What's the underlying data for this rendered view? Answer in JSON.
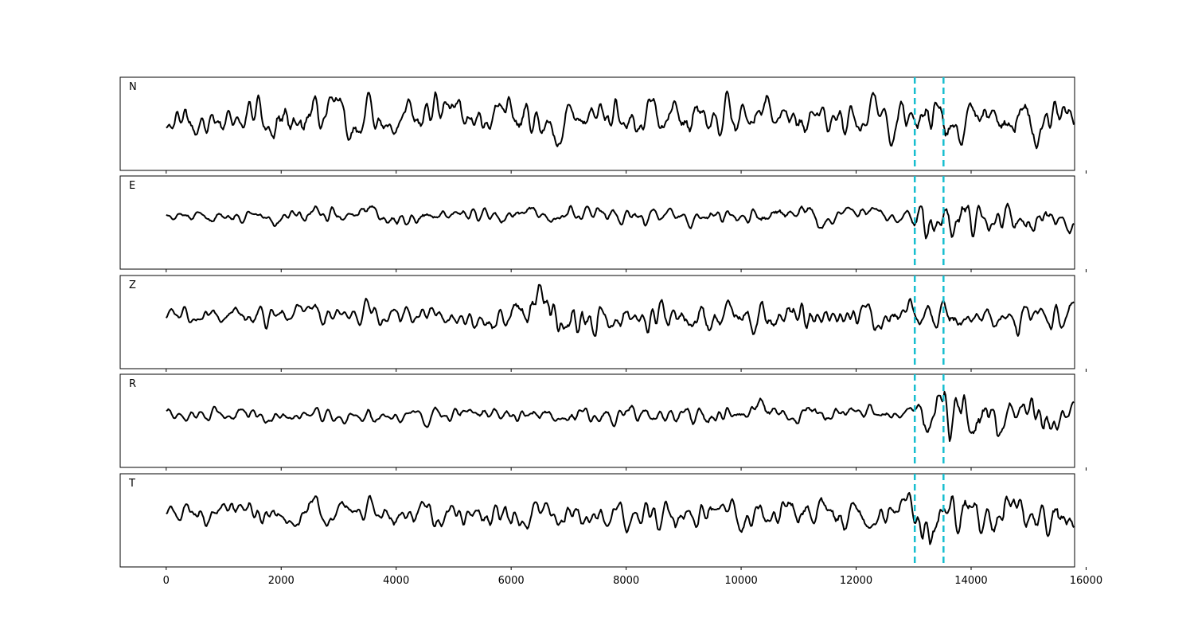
{
  "chart_data": {
    "type": "line",
    "title": "",
    "xlabel": "",
    "ylabel": "",
    "xlim": [
      -800,
      15800
    ],
    "x_ticks": [
      0,
      2000,
      4000,
      6000,
      8000,
      10000,
      12000,
      14000,
      16000
    ],
    "x_tick_labels": [
      "0",
      "2000",
      "4000",
      "6000",
      "8000",
      "10000",
      "12000",
      "14000",
      "16000"
    ],
    "grid": false,
    "legend": "none",
    "sample_range": [
      0,
      15800
    ],
    "vertical_markers": {
      "color": "#17becf",
      "style": "dashed",
      "x": [
        13020,
        13520
      ]
    },
    "panels": [
      {
        "label": "N",
        "color": "#000000",
        "description_note": "",
        "envelope": [
          [
            0,
            0.38
          ],
          [
            12900,
            0.4
          ],
          [
            13000,
            0.18
          ],
          [
            13150,
            0.75
          ],
          [
            13500,
            0.6
          ],
          [
            14000,
            0.45
          ],
          [
            15800,
            0.55
          ]
        ]
      },
      {
        "label": "E",
        "color": "#000000",
        "description_note": "",
        "envelope": [
          [
            0,
            0.12
          ],
          [
            3400,
            0.18
          ],
          [
            9000,
            0.16
          ],
          [
            10400,
            0.22
          ],
          [
            13000,
            0.14
          ],
          [
            13150,
            0.75
          ],
          [
            13400,
            0.55
          ],
          [
            14000,
            0.35
          ],
          [
            15800,
            0.3
          ]
        ]
      },
      {
        "label": "Z",
        "color": "#000000",
        "description_note": "",
        "envelope": [
          [
            0,
            0.2
          ],
          [
            6000,
            0.25
          ],
          [
            6800,
            0.7
          ],
          [
            7400,
            0.55
          ],
          [
            8000,
            0.35
          ],
          [
            12000,
            0.35
          ],
          [
            13000,
            0.3
          ],
          [
            15000,
            0.35
          ],
          [
            15800,
            0.3
          ]
        ]
      },
      {
        "label": "R",
        "color": "#000000",
        "description_note": "",
        "envelope": [
          [
            0,
            0.15
          ],
          [
            6000,
            0.18
          ],
          [
            10000,
            0.22
          ],
          [
            13000,
            0.16
          ],
          [
            13150,
            0.65
          ],
          [
            13500,
            0.7
          ],
          [
            14000,
            0.45
          ],
          [
            15800,
            0.35
          ]
        ]
      },
      {
        "label": "T",
        "color": "#000000",
        "description_note": "",
        "envelope": [
          [
            0,
            0.25
          ],
          [
            6000,
            0.3
          ],
          [
            10500,
            0.35
          ],
          [
            13000,
            0.28
          ],
          [
            13200,
            0.75
          ],
          [
            13500,
            0.45
          ],
          [
            14000,
            0.4
          ],
          [
            15800,
            0.4
          ]
        ]
      }
    ]
  }
}
